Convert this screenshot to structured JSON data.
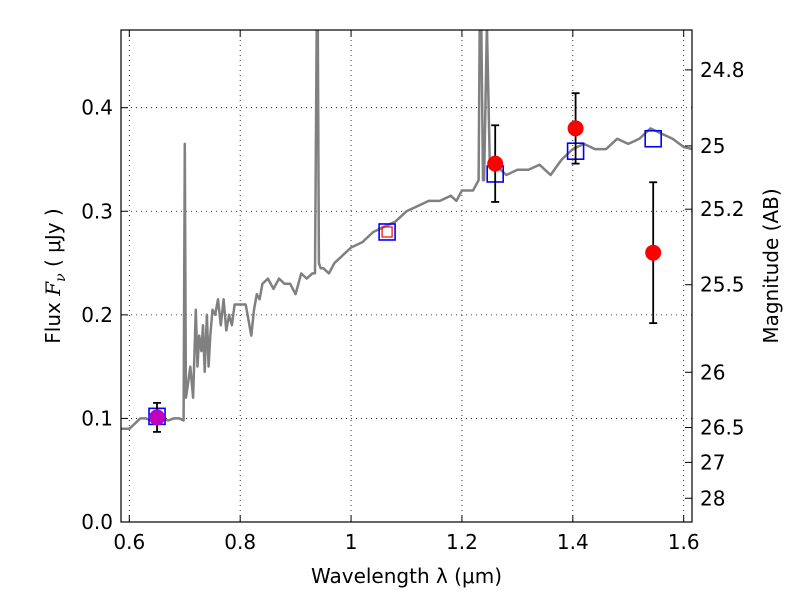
{
  "chart_data": {
    "type": "scatter",
    "xlabel": "Wavelength  λ (μm)",
    "ylabel": "Flux  F_ν  ( μJy )",
    "y2label": "Magnitude (AB)",
    "xlim": [
      0.585,
      1.615
    ],
    "ylim": [
      0.0,
      0.475
    ],
    "grid": true,
    "x_ticks": [
      0.6,
      0.8,
      1.0,
      1.2,
      1.4,
      1.6
    ],
    "x_tick_labels": [
      "0.6",
      "0.8",
      "1",
      "1.2",
      "1.4",
      "1.6"
    ],
    "y_ticks": [
      0.0,
      0.1,
      0.2,
      0.3,
      0.4
    ],
    "y_tick_labels": [
      "0.0",
      "0.1",
      "0.2",
      "0.3",
      "0.4"
    ],
    "y2_ticks": [
      24.8,
      25,
      25.2,
      25.5,
      26,
      26.5,
      27,
      28
    ],
    "y2_tick_labels": [
      "24.8",
      "25",
      "25.2",
      "25.5",
      "26",
      "26.5",
      "27",
      "28"
    ],
    "model_spectrum": {
      "color": "#808080",
      "x": [
        0.585,
        0.6,
        0.61,
        0.62,
        0.63,
        0.64,
        0.65,
        0.66,
        0.67,
        0.68,
        0.69,
        0.698,
        0.7,
        0.702,
        0.705,
        0.71,
        0.715,
        0.72,
        0.723,
        0.726,
        0.73,
        0.733,
        0.736,
        0.74,
        0.743,
        0.746,
        0.75,
        0.755,
        0.76,
        0.765,
        0.77,
        0.775,
        0.78,
        0.785,
        0.79,
        0.8,
        0.81,
        0.82,
        0.825,
        0.83,
        0.835,
        0.84,
        0.85,
        0.86,
        0.87,
        0.88,
        0.89,
        0.9,
        0.91,
        0.92,
        0.93,
        0.935,
        0.938,
        0.94,
        0.942,
        0.945,
        0.95,
        0.96,
        0.97,
        0.98,
        0.99,
        1.0,
        1.02,
        1.04,
        1.06,
        1.08,
        1.1,
        1.12,
        1.14,
        1.16,
        1.18,
        1.19,
        1.2,
        1.21,
        1.22,
        1.225,
        1.23,
        1.232,
        1.235,
        1.238,
        1.24,
        1.245,
        1.25,
        1.26,
        1.28,
        1.3,
        1.32,
        1.34,
        1.36,
        1.38,
        1.4,
        1.42,
        1.44,
        1.46,
        1.48,
        1.5,
        1.52,
        1.54,
        1.56,
        1.58,
        1.6,
        1.615
      ],
      "y": [
        0.09,
        0.09,
        0.095,
        0.1,
        0.1,
        0.098,
        0.1,
        0.1,
        0.098,
        0.1,
        0.1,
        0.098,
        0.365,
        0.12,
        0.13,
        0.15,
        0.12,
        0.205,
        0.15,
        0.18,
        0.165,
        0.19,
        0.145,
        0.2,
        0.15,
        0.18,
        0.205,
        0.2,
        0.215,
        0.19,
        0.215,
        0.185,
        0.2,
        0.19,
        0.21,
        0.21,
        0.21,
        0.18,
        0.205,
        0.22,
        0.215,
        0.23,
        0.235,
        0.225,
        0.235,
        0.23,
        0.23,
        0.22,
        0.24,
        0.235,
        0.24,
        0.24,
        0.48,
        0.48,
        0.25,
        0.245,
        0.245,
        0.24,
        0.25,
        0.255,
        0.26,
        0.265,
        0.27,
        0.28,
        0.285,
        0.29,
        0.3,
        0.305,
        0.31,
        0.31,
        0.315,
        0.31,
        0.32,
        0.32,
        0.32,
        0.325,
        0.33,
        0.48,
        0.48,
        0.33,
        0.33,
        0.48,
        0.35,
        0.345,
        0.335,
        0.34,
        0.34,
        0.345,
        0.335,
        0.35,
        0.36,
        0.365,
        0.36,
        0.36,
        0.37,
        0.365,
        0.37,
        0.38,
        0.375,
        0.37,
        0.362,
        0.36
      ]
    },
    "model_photometry": {
      "marker": "open-square",
      "color": "#0000ff",
      "x": [
        0.65,
        1.065,
        1.26,
        1.405,
        1.545
      ],
      "y": [
        0.102,
        0.28,
        0.336,
        0.358,
        0.37
      ]
    },
    "observed_photometry": {
      "marker": "filled-circle",
      "color": "#ff0000",
      "x": [
        0.65,
        1.065,
        1.26,
        1.405,
        1.545
      ],
      "y": [
        0.101,
        0.28,
        0.346,
        0.38,
        0.26
      ],
      "yerr": [
        0.014,
        0.003,
        0.037,
        0.034,
        0.068
      ]
    },
    "colors": {
      "spectrum": "#808080",
      "model": "#0000ff",
      "observed": "#ff0000",
      "first_point": "#c000c0"
    }
  }
}
